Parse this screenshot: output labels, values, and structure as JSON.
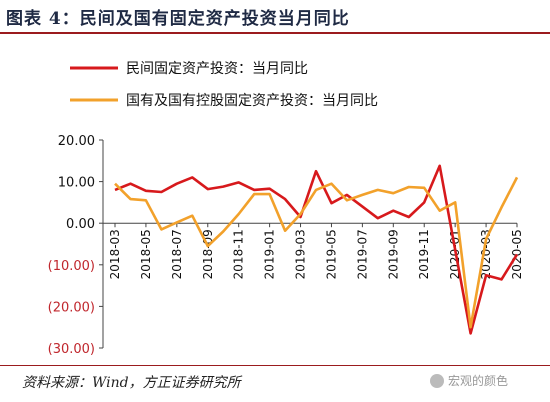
{
  "header": {
    "title": "图表 4：民间及国有固定资产投资当月同比"
  },
  "footer": {
    "source": "资料来源：Wind，方正证券研究所",
    "watermark": "宏观的颜色"
  },
  "colors": {
    "private": "#d7191c",
    "state": "#f2a12b",
    "rule": "#9b1b1e",
    "negative": "#c0272d"
  },
  "chart_data": {
    "type": "line",
    "title": "",
    "ylim": [
      -30,
      20
    ],
    "yticks": [
      20,
      10,
      0,
      -10,
      -20,
      -30
    ],
    "ytick_labels": [
      "20.00",
      "10.00",
      "0.00",
      "(10.00)",
      "(20.00)",
      "(30.00)"
    ],
    "x": [
      "2018-03",
      "2018-04",
      "2018-05",
      "2018-06",
      "2018-07",
      "2018-08",
      "2018-09",
      "2018-10",
      "2018-11",
      "2018-12",
      "2019-01",
      "2019-02",
      "2019-03",
      "2019-04",
      "2019-05",
      "2019-06",
      "2019-07",
      "2019-08",
      "2019-09",
      "2019-10",
      "2019-11",
      "2019-12",
      "2020-01",
      "2020-02",
      "2020-03",
      "2020-04",
      "2020-05"
    ],
    "xtick_labels": [
      "2018-03",
      "2018-05",
      "2018-07",
      "2018-09",
      "2018-11",
      "2019-01",
      "2019-03",
      "2019-05",
      "2019-07",
      "2019-09",
      "2019-11",
      "2020-01",
      "2020-03",
      "2020-05"
    ],
    "legend_position": "top",
    "series": [
      {
        "name": "民间固定资产投资：当月同比",
        "color_key": "private",
        "values": [
          8.0,
          9.5,
          7.8,
          7.5,
          9.5,
          11.0,
          8.2,
          8.8,
          9.8,
          8.0,
          8.3,
          5.8,
          1.5,
          12.5,
          4.8,
          6.8,
          4.0,
          1.2,
          3.0,
          1.5,
          5.0,
          13.8,
          null,
          -26.5,
          -12.5,
          -13.5,
          -7.5
        ]
      },
      {
        "name": "国有及国有控股固定资产投资：当月同比",
        "color_key": "state",
        "values": [
          9.5,
          5.8,
          5.5,
          -1.5,
          0.2,
          1.8,
          -5.5,
          -2.0,
          2.2,
          7.0,
          7.0,
          -1.8,
          2.2,
          8.0,
          9.5,
          5.5,
          6.8,
          8.0,
          7.2,
          8.7,
          8.5,
          3.0,
          5.0,
          -25.0,
          -3.8,
          3.8,
          11.0
        ]
      }
    ]
  }
}
